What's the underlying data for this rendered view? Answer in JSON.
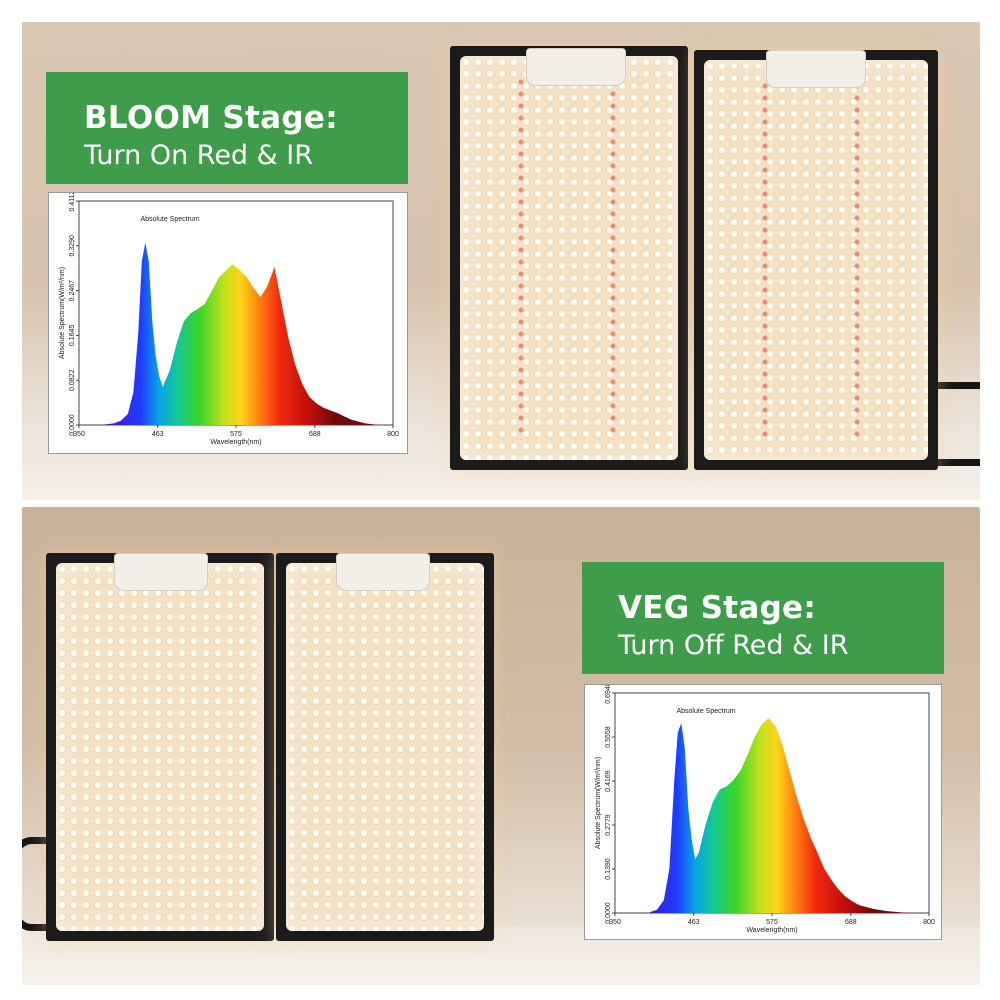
{
  "bloom": {
    "title": "BLOOM Stage:",
    "subtitle": "Turn On Red & IR"
  },
  "veg": {
    "title": "VEG Stage:",
    "subtitle": "Turn Off Red & IR"
  },
  "colors": {
    "label_green": "#3f9c4a",
    "panel_black": "#1b1b1b",
    "led_warm": "#f3e2c8"
  },
  "chart_data": [
    {
      "type": "area",
      "title": "Absolute Spectrum",
      "xlabel": "Wavelength(nm)",
      "ylabel": "Absolute Spectrum(W/m²/nm)",
      "xlim": [
        350,
        800
      ],
      "ylim": [
        0,
        0.4112
      ],
      "x_ticks": [
        "350",
        "463",
        "575",
        "688",
        "800"
      ],
      "y_ticks": [
        "0.0000",
        "0.0822",
        "0.1645",
        "0.2467",
        "0.3290",
        "0.4112"
      ],
      "series": [
        {
          "x": [
            380,
            400,
            410,
            420,
            428,
            435,
            440,
            445,
            450,
            455,
            460,
            465,
            470,
            480,
            490,
            500,
            510,
            520,
            530,
            540,
            550,
            560,
            570,
            580,
            590,
            600,
            610,
            620,
            630,
            640,
            650,
            660,
            670,
            680,
            690,
            700,
            720,
            740,
            760,
            780
          ],
          "y": [
            0.0,
            0.003,
            0.008,
            0.02,
            0.06,
            0.17,
            0.3,
            0.335,
            0.3,
            0.19,
            0.125,
            0.09,
            0.07,
            0.1,
            0.15,
            0.19,
            0.205,
            0.213,
            0.222,
            0.245,
            0.27,
            0.283,
            0.295,
            0.285,
            0.272,
            0.252,
            0.235,
            0.255,
            0.29,
            0.225,
            0.16,
            0.11,
            0.075,
            0.052,
            0.04,
            0.032,
            0.022,
            0.01,
            0.003,
            0.0
          ]
        }
      ]
    },
    {
      "type": "area",
      "title": "Absolute Spectrum",
      "xlabel": "Wavelength(nm)",
      "ylabel": "Absolute Spectrum(W/m²/nm)",
      "xlim": [
        350,
        800
      ],
      "ylim": [
        0,
        0.6948
      ],
      "x_ticks": [
        "350",
        "463",
        "575",
        "688",
        "800"
      ],
      "y_ticks": [
        "0.0000",
        "0.1390",
        "0.2779",
        "0.4169",
        "0.5558",
        "0.6948"
      ],
      "series": [
        {
          "x": [
            400,
            410,
            420,
            428,
            435,
            440,
            445,
            450,
            455,
            460,
            465,
            470,
            480,
            490,
            500,
            510,
            520,
            530,
            540,
            550,
            560,
            570,
            580,
            590,
            600,
            610,
            620,
            630,
            640,
            650,
            660,
            670,
            680,
            690,
            700,
            720,
            740,
            760,
            780,
            790
          ],
          "y": [
            0.003,
            0.01,
            0.04,
            0.14,
            0.42,
            0.57,
            0.6,
            0.52,
            0.33,
            0.23,
            0.17,
            0.19,
            0.28,
            0.35,
            0.39,
            0.4,
            0.42,
            0.45,
            0.5,
            0.555,
            0.595,
            0.615,
            0.59,
            0.53,
            0.45,
            0.37,
            0.3,
            0.24,
            0.19,
            0.14,
            0.105,
            0.075,
            0.052,
            0.037,
            0.025,
            0.013,
            0.006,
            0.002,
            0.0,
            0.0
          ]
        }
      ]
    }
  ]
}
